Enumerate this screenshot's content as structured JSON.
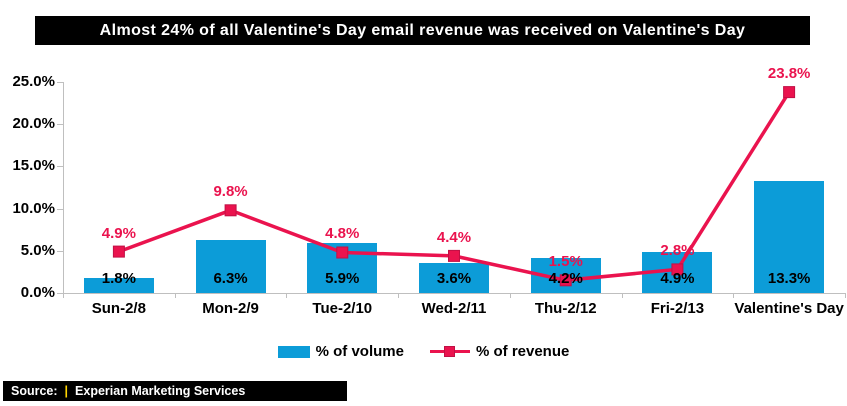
{
  "title": "Almost 24% of all Valentine's Day email revenue was received on Valentine's Day",
  "source": {
    "prefix": "Source:",
    "separator": "|",
    "text": "Experian Marketing Services"
  },
  "colors": {
    "bar_blue": "#0C9CD8",
    "line_crimson": "#EA134E",
    "marker_border": "#C01045",
    "axis_gray": "#BFBFBF",
    "title_bg": "#000000",
    "title_fg": "#FFFFFF",
    "source_separator_color": "#FFD400",
    "label_black": "#000000"
  },
  "chart_data": {
    "type": "combo",
    "title": "Almost 24% of all Valentine's Day email revenue was received on Valentine's Day",
    "categories": [
      "Sun-2/8",
      "Mon-2/9",
      "Tue-2/10",
      "Wed-2/11",
      "Thu-2/12",
      "Fri-2/13",
      "Valentine's Day"
    ],
    "series": [
      {
        "name": "% of volume",
        "type": "bar",
        "values": [
          1.8,
          6.3,
          5.9,
          3.6,
          4.2,
          4.9,
          13.3
        ],
        "labels": [
          "1.8%",
          "6.3%",
          "5.9%",
          "3.6%",
          "4.2%",
          "4.9%",
          "13.3%"
        ]
      },
      {
        "name": "% of revenue",
        "type": "line",
        "values": [
          4.9,
          9.8,
          4.8,
          4.4,
          1.5,
          2.8,
          23.8
        ],
        "labels": [
          "4.9%",
          "9.8%",
          "4.8%",
          "4.4%",
          "1.5%",
          "2.8%",
          "23.8%"
        ]
      }
    ],
    "xlabel": "",
    "ylabel": "",
    "ylim": [
      0,
      25
    ],
    "yticks": [
      "0.0%",
      "5.0%",
      "10.0%",
      "15.0%",
      "20.0%",
      "25.0%"
    ],
    "grid": false,
    "legend_position": "bottom"
  }
}
